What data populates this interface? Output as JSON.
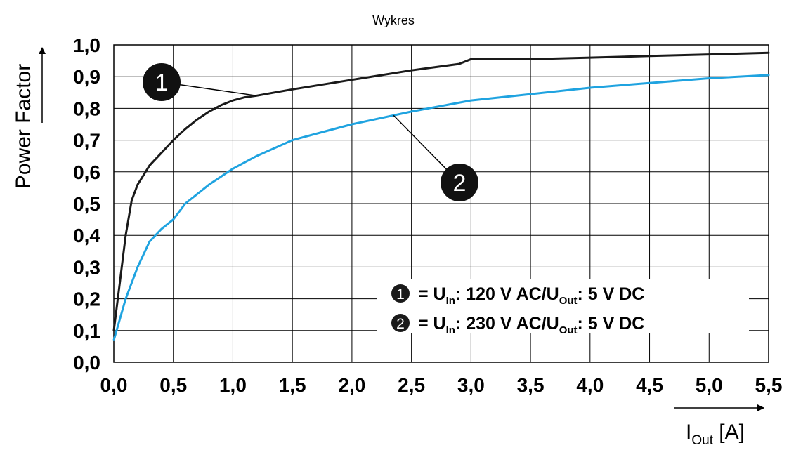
{
  "chart_data": {
    "type": "line",
    "title": "Wykres",
    "ylabel": "Power Factor",
    "xlabel": {
      "main": "I",
      "sub": "Out",
      "unit": " [A]"
    },
    "xlim": [
      0,
      5.5
    ],
    "ylim": [
      0,
      1.0
    ],
    "x_ticks": [
      "0,0",
      "0,5",
      "1,0",
      "1,5",
      "2,0",
      "2,5",
      "3,0",
      "3,5",
      "4,0",
      "4,5",
      "5,0",
      "5,5"
    ],
    "y_ticks": [
      "0,0",
      "0,1",
      "0,2",
      "0,3",
      "0,4",
      "0,5",
      "0,6",
      "0,7",
      "0,8",
      "0,9",
      "1,0"
    ],
    "grid": true,
    "series": [
      {
        "marker": "1",
        "color": "#1a1a1a",
        "x": [
          0.0,
          0.05,
          0.1,
          0.15,
          0.2,
          0.25,
          0.3,
          0.4,
          0.5,
          0.6,
          0.7,
          0.8,
          0.9,
          1.0,
          1.1,
          1.2,
          1.5,
          2.0,
          2.5,
          2.9,
          3.0,
          3.2,
          3.5,
          4.0,
          4.5,
          5.0,
          5.5
        ],
        "y": [
          0.1,
          0.25,
          0.4,
          0.51,
          0.56,
          0.59,
          0.62,
          0.66,
          0.7,
          0.735,
          0.765,
          0.79,
          0.81,
          0.825,
          0.835,
          0.84,
          0.86,
          0.89,
          0.92,
          0.94,
          0.955,
          0.955,
          0.955,
          0.96,
          0.965,
          0.97,
          0.975
        ]
      },
      {
        "marker": "2",
        "color": "#1fa3e0",
        "x": [
          0.0,
          0.1,
          0.2,
          0.3,
          0.4,
          0.5,
          0.6,
          0.8,
          1.0,
          1.2,
          1.5,
          1.8,
          2.0,
          2.5,
          3.0,
          3.5,
          4.0,
          4.5,
          5.0,
          5.5
        ],
        "y": [
          0.07,
          0.2,
          0.3,
          0.38,
          0.42,
          0.45,
          0.5,
          0.56,
          0.61,
          0.65,
          0.7,
          0.73,
          0.75,
          0.79,
          0.825,
          0.845,
          0.865,
          0.88,
          0.895,
          0.905
        ]
      }
    ],
    "legend": {
      "placement": "bottom-right",
      "entries": [
        {
          "marker": "1",
          "prefix": "= U",
          "in_sub": "In",
          "mid": ": 120 V AC/U",
          "out_sub": "Out",
          "suffix": ": 5 V DC"
        },
        {
          "marker": "2",
          "prefix": "= U",
          "in_sub": "In",
          "mid": ": 230 V AC/U",
          "out_sub": "Out",
          "suffix": ": 5 V DC"
        }
      ]
    },
    "callouts": [
      {
        "label": "1",
        "series": 0,
        "x": 1.2
      },
      {
        "label": "2",
        "series": 1,
        "x": 2.35
      }
    ]
  }
}
